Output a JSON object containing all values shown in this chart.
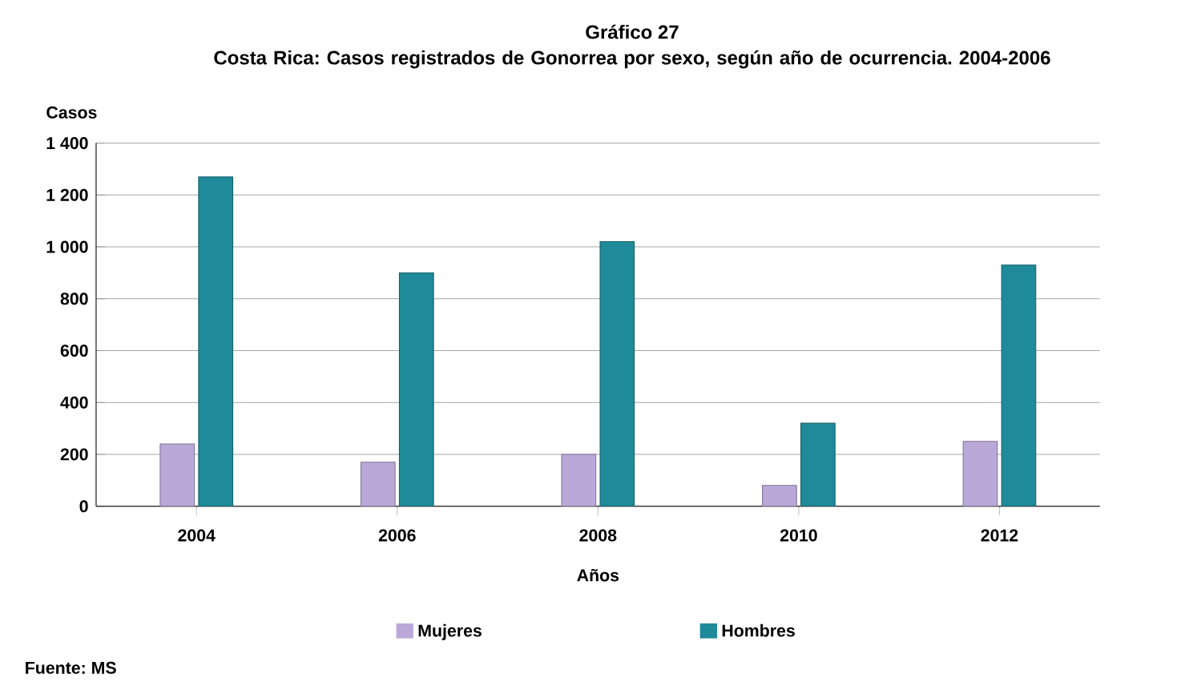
{
  "chart_data": {
    "type": "bar",
    "title": "Gráfico 27",
    "subtitle": "Costa Rica: Casos registrados de Gonorrea por sexo, según año de ocurrencia. 2004-2006",
    "xlabel": "Años",
    "ylabel": "Casos",
    "categories": [
      "2004",
      "2006",
      "2008",
      "2010",
      "2012"
    ],
    "series": [
      {
        "name": "Mujeres",
        "color": "#b9a8d8",
        "values": [
          240,
          170,
          200,
          80,
          250
        ]
      },
      {
        "name": "Hombres",
        "color": "#1f8a99",
        "values": [
          1270,
          900,
          1020,
          320,
          930
        ]
      }
    ],
    "ylim": [
      0,
      1400
    ],
    "yticks": [
      0,
      200,
      400,
      600,
      800,
      {
        "value": 1000,
        "label": "1 000"
      },
      {
        "value": 1200,
        "label": "1 200"
      },
      {
        "value": 1400,
        "label": "1 400"
      }
    ],
    "grid": "y",
    "legend": "bottom",
    "annotations": [
      "Fuente: MS"
    ]
  }
}
